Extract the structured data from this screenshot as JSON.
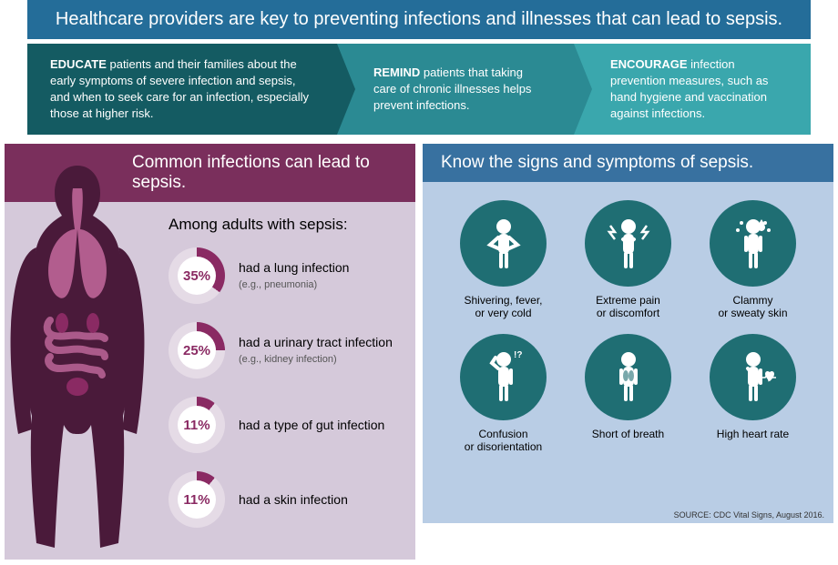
{
  "colors": {
    "header_bg": "#246d99",
    "header_text": "#ffffff",
    "arrow1_bg": "#145b62",
    "arrow2_bg": "#2b8a93",
    "arrow3_bg": "#3aa7ad",
    "panel_left_header": "#7a2f5c",
    "panel_left_body": "#d5c9da",
    "panel_right_header": "#3871a0",
    "panel_right_body": "#b9cde5",
    "donut_fill": "#8a2a63",
    "donut_ring": "#e5dbe6",
    "donut_text": "#8a2a63",
    "symptom_circle": "#1f6e73",
    "symptom_icon": "#ffffff",
    "body_dark": "#4a1a3a",
    "body_organ": "#c46a9e"
  },
  "header": {
    "text": "Healthcare providers are key to preventing infections and illnesses that can lead to sepsis."
  },
  "arrows": [
    {
      "bold": "EDUCATE",
      "text": " patients and their families about the early symptoms of severe infection and sepsis, and when to seek care for an infection, especially those at higher risk."
    },
    {
      "bold": "REMIND",
      "text": " patients that taking care of chronic illnesses helps prevent infections."
    },
    {
      "bold": "ENCOURAGE",
      "text": " infection prevention measures, such as hand hygiene and vaccination against infections."
    }
  ],
  "left_panel": {
    "title": "Common infections can lead to sepsis.",
    "subhead": "Among adults with sepsis:",
    "stats": [
      {
        "pct": 35,
        "label": "35%",
        "text": "had a lung infection",
        "sub": "(e.g., pneumonia)"
      },
      {
        "pct": 25,
        "label": "25%",
        "text": "had a urinary tract infection",
        "sub": "(e.g., kidney infection)"
      },
      {
        "pct": 11,
        "label": "11%",
        "text": "had a type of gut infection",
        "sub": ""
      },
      {
        "pct": 11,
        "label": "11%",
        "text": "had a skin infection",
        "sub": ""
      }
    ]
  },
  "right_panel": {
    "title": "Know the signs and symptoms of sepsis.",
    "symptoms": [
      {
        "id": "shivering",
        "label": "Shivering, fever, or very cold"
      },
      {
        "id": "pain",
        "label": "Extreme pain or discomfort"
      },
      {
        "id": "clammy",
        "label": "Clammy or sweaty skin"
      },
      {
        "id": "confusion",
        "label": "Confusion or disorientation"
      },
      {
        "id": "breath",
        "label": "Short of breath"
      },
      {
        "id": "heart",
        "label": "High heart rate"
      }
    ]
  },
  "source": "SOURCE: CDC Vital Signs, August 2016."
}
